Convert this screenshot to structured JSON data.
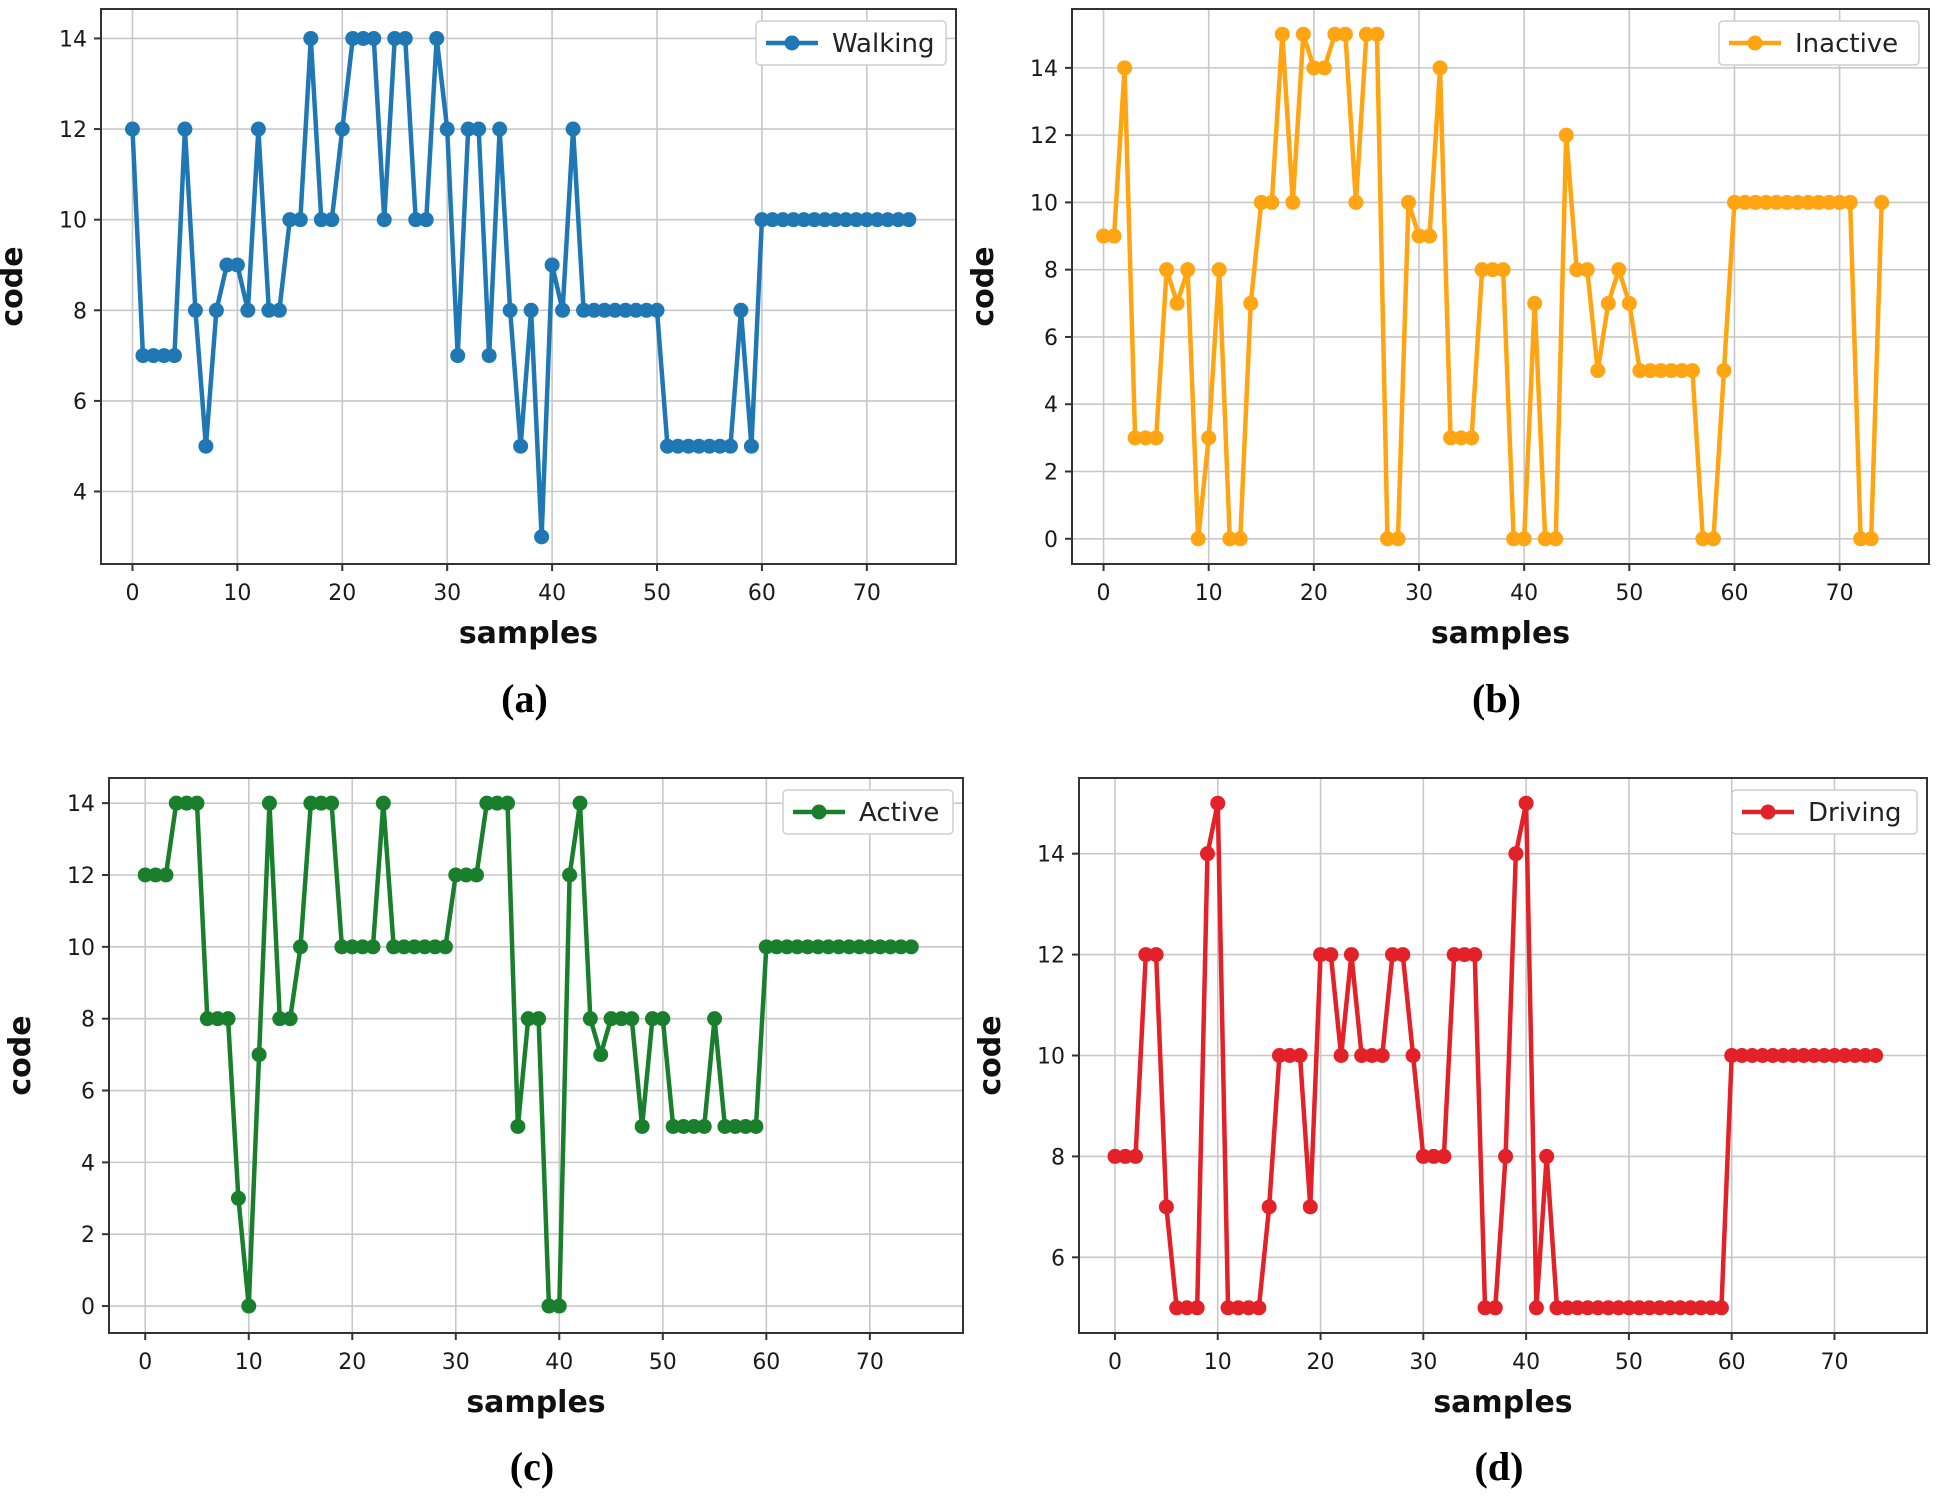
{
  "chart_data": [
    {
      "type": "line",
      "caption": "(a)",
      "xlabel": "samples",
      "ylabel": "code",
      "xlim": [
        -3,
        78.5
      ],
      "ylim": [
        2.4,
        14.65
      ],
      "xticks": [
        0,
        10,
        20,
        30,
        40,
        50,
        60,
        70
      ],
      "yticks": [
        4,
        6,
        8,
        10,
        12,
        14
      ],
      "grid": true,
      "legend_position": "top-right",
      "series": [
        {
          "name": "Walking",
          "color": "#1f77b4",
          "x": [
            0,
            1,
            2,
            3,
            4,
            5,
            6,
            7,
            8,
            9,
            10,
            11,
            12,
            13,
            14,
            15,
            16,
            17,
            18,
            19,
            20,
            21,
            22,
            23,
            24,
            25,
            26,
            27,
            28,
            29,
            30,
            31,
            32,
            33,
            34,
            35,
            36,
            37,
            38,
            39,
            40,
            41,
            42,
            43,
            44,
            45,
            46,
            47,
            48,
            49,
            50,
            51,
            52,
            53,
            54,
            55,
            56,
            57,
            58,
            59,
            60,
            61,
            62,
            63,
            64,
            65,
            66,
            67,
            68,
            69,
            70,
            71,
            72,
            73,
            74
          ],
          "values": [
            12,
            7,
            7,
            7,
            7,
            12,
            8,
            5,
            8,
            9,
            9,
            8,
            12,
            8,
            8,
            10,
            10,
            14,
            10,
            10,
            12,
            14,
            14,
            14,
            10,
            14,
            14,
            10,
            10,
            14,
            12,
            7,
            12,
            12,
            7,
            12,
            8,
            5,
            8,
            3,
            9,
            8,
            12,
            8,
            8,
            8,
            8,
            8,
            8,
            8,
            8,
            5,
            5,
            5,
            5,
            5,
            5,
            5,
            8,
            5,
            10,
            10,
            10,
            10,
            10,
            10,
            10,
            10,
            10,
            10,
            10,
            10,
            10,
            10,
            10
          ]
        }
      ]
    },
    {
      "type": "line",
      "caption": "(b)",
      "xlabel": "samples",
      "ylabel": "code",
      "xlim": [
        -3,
        78.5
      ],
      "ylim": [
        -0.75,
        15.75
      ],
      "xticks": [
        0,
        10,
        20,
        30,
        40,
        50,
        60,
        70
      ],
      "yticks": [
        0,
        2,
        4,
        6,
        8,
        10,
        12,
        14
      ],
      "grid": true,
      "legend_position": "top-right",
      "series": [
        {
          "name": "Inactive",
          "color": "#ffa513",
          "x": [
            0,
            1,
            2,
            3,
            4,
            5,
            6,
            7,
            8,
            9,
            10,
            11,
            12,
            13,
            14,
            15,
            16,
            17,
            18,
            19,
            20,
            21,
            22,
            23,
            24,
            25,
            26,
            27,
            28,
            29,
            30,
            31,
            32,
            33,
            34,
            35,
            36,
            37,
            38,
            39,
            40,
            41,
            42,
            43,
            44,
            45,
            46,
            47,
            48,
            49,
            50,
            51,
            52,
            53,
            54,
            55,
            56,
            57,
            58,
            59,
            60,
            61,
            62,
            63,
            64,
            65,
            66,
            67,
            68,
            69,
            70,
            71,
            72,
            73,
            74
          ],
          "values": [
            9,
            9,
            14,
            3,
            3,
            3,
            8,
            7,
            8,
            0,
            3,
            8,
            0,
            0,
            7,
            10,
            10,
            15,
            10,
            15,
            14,
            14,
            15,
            15,
            10,
            15,
            15,
            0,
            0,
            10,
            9,
            9,
            14,
            3,
            3,
            3,
            8,
            8,
            8,
            0,
            0,
            7,
            0,
            0,
            12,
            8,
            8,
            5,
            7,
            8,
            7,
            5,
            5,
            5,
            5,
            5,
            5,
            0,
            0,
            5,
            10,
            10,
            10,
            10,
            10,
            10,
            10,
            10,
            10,
            10,
            10,
            10,
            0,
            0,
            10
          ]
        }
      ]
    },
    {
      "type": "line",
      "caption": "(c)",
      "xlabel": "samples",
      "ylabel": "code",
      "xlim": [
        -3.5,
        79
      ],
      "ylim": [
        -0.75,
        14.7
      ],
      "xticks": [
        0,
        10,
        20,
        30,
        40,
        50,
        60,
        70
      ],
      "yticks": [
        0,
        2,
        4,
        6,
        8,
        10,
        12,
        14
      ],
      "grid": true,
      "legend_position": "top-right",
      "series": [
        {
          "name": "Active",
          "color": "#1a7f2c",
          "x": [
            0,
            1,
            2,
            3,
            4,
            5,
            6,
            7,
            8,
            9,
            10,
            11,
            12,
            13,
            14,
            15,
            16,
            17,
            18,
            19,
            20,
            21,
            22,
            23,
            24,
            25,
            26,
            27,
            28,
            29,
            30,
            31,
            32,
            33,
            34,
            35,
            36,
            37,
            38,
            39,
            40,
            41,
            42,
            43,
            44,
            45,
            46,
            47,
            48,
            49,
            50,
            51,
            52,
            53,
            54,
            55,
            56,
            57,
            58,
            59,
            60,
            61,
            62,
            63,
            64,
            65,
            66,
            67,
            68,
            69,
            70,
            71,
            72,
            73,
            74
          ],
          "values": [
            12,
            12,
            12,
            14,
            14,
            14,
            8,
            8,
            8,
            3,
            0,
            7,
            14,
            8,
            8,
            10,
            14,
            14,
            14,
            10,
            10,
            10,
            10,
            14,
            10,
            10,
            10,
            10,
            10,
            10,
            12,
            12,
            12,
            14,
            14,
            14,
            5,
            8,
            8,
            0,
            0,
            12,
            14,
            8,
            7,
            8,
            8,
            8,
            5,
            8,
            8,
            5,
            5,
            5,
            5,
            8,
            5,
            5,
            5,
            5,
            10,
            10,
            10,
            10,
            10,
            10,
            10,
            10,
            10,
            10,
            10,
            10,
            10,
            10,
            10
          ]
        }
      ]
    },
    {
      "type": "line",
      "caption": "(d)",
      "xlabel": "samples",
      "ylabel": "code",
      "xlim": [
        -3.5,
        79
      ],
      "ylim": [
        4.5,
        15.5
      ],
      "xticks": [
        0,
        10,
        20,
        30,
        40,
        50,
        60,
        70
      ],
      "yticks": [
        6,
        8,
        10,
        12,
        14
      ],
      "grid": true,
      "legend_position": "top-right",
      "series": [
        {
          "name": "Driving",
          "color": "#e32129",
          "x": [
            0,
            1,
            2,
            3,
            4,
            5,
            6,
            7,
            8,
            9,
            10,
            11,
            12,
            13,
            14,
            15,
            16,
            17,
            18,
            19,
            20,
            21,
            22,
            23,
            24,
            25,
            26,
            27,
            28,
            29,
            30,
            31,
            32,
            33,
            34,
            35,
            36,
            37,
            38,
            39,
            40,
            41,
            42,
            43,
            44,
            45,
            46,
            47,
            48,
            49,
            50,
            51,
            52,
            53,
            54,
            55,
            56,
            57,
            58,
            59,
            60,
            61,
            62,
            63,
            64,
            65,
            66,
            67,
            68,
            69,
            70,
            71,
            72,
            73,
            74
          ],
          "values": [
            8,
            8,
            8,
            12,
            12,
            7,
            5,
            5,
            5,
            14,
            15,
            5,
            5,
            5,
            5,
            7,
            10,
            10,
            10,
            7,
            12,
            12,
            10,
            12,
            10,
            10,
            10,
            12,
            12,
            10,
            8,
            8,
            8,
            12,
            12,
            12,
            5,
            5,
            8,
            14,
            15,
            5,
            8,
            5,
            5,
            5,
            5,
            5,
            5,
            5,
            5,
            5,
            5,
            5,
            5,
            5,
            5,
            5,
            5,
            5,
            10,
            10,
            10,
            10,
            10,
            10,
            10,
            10,
            10,
            10,
            10,
            10,
            10,
            10,
            10
          ]
        }
      ]
    }
  ]
}
